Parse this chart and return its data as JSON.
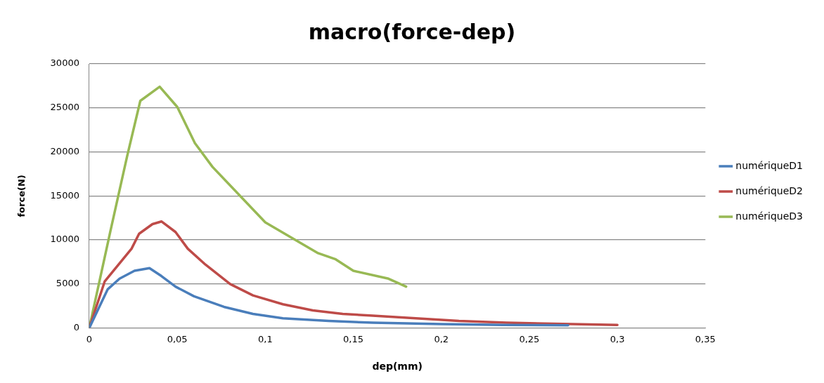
{
  "chart_data": {
    "type": "line",
    "title": "macro(force-dep)",
    "xlabel": "dep(mm)",
    "ylabel": "force(N)",
    "xlim": [
      0,
      0.35
    ],
    "xticks": [
      0,
      {
        "value": 0.05,
        "label": "0,05"
      },
      {
        "value": 0.1,
        "label": "0,1"
      },
      {
        "value": 0.15,
        "label": "0,15"
      },
      {
        "value": 0.2,
        "label": "0,2"
      },
      {
        "value": 0.25,
        "label": "0,25"
      },
      {
        "value": 0.3,
        "label": "0,3"
      },
      {
        "value": 0.35,
        "label": "0,35"
      }
    ],
    "ylim": [
      0,
      30000
    ],
    "yticks": [
      0,
      5000,
      10000,
      15000,
      20000,
      25000,
      30000
    ],
    "grid": "y",
    "legend": "right",
    "marker": "none",
    "line_style": "solid",
    "series": [
      {
        "name": "numériqueD1",
        "color": "#4a7ebb",
        "x": [
          0,
          0.0105,
          0.0172,
          0.0257,
          0.0342,
          0.041,
          0.049,
          0.0595,
          0.0765,
          0.093,
          0.11,
          0.136,
          0.161,
          0.2,
          0.235,
          0.272
        ],
        "values": [
          0,
          4400,
          5600,
          6500,
          6800,
          5900,
          4700,
          3600,
          2400,
          1600,
          1100,
          800,
          600,
          450,
          350,
          300
        ]
      },
      {
        "name": "numériqueD2",
        "color": "#be4b48",
        "x": [
          0,
          0.0088,
          0.024,
          0.0283,
          0.0359,
          0.041,
          0.049,
          0.056,
          0.066,
          0.08,
          0.093,
          0.11,
          0.127,
          0.144,
          0.161,
          0.21,
          0.237,
          0.3
        ],
        "values": [
          0,
          5300,
          9000,
          10700,
          11800,
          12100,
          10900,
          9000,
          7200,
          5000,
          3700,
          2700,
          2000,
          1600,
          1400,
          800,
          600,
          350
        ]
      },
      {
        "name": "numériqueD3",
        "color": "#98b954",
        "x": [
          0,
          0.012,
          0.0215,
          0.029,
          0.04,
          0.05,
          0.06,
          0.07,
          0.1,
          0.13,
          0.14,
          0.15,
          0.17,
          0.18
        ],
        "values": [
          0,
          11000,
          19500,
          25800,
          27400,
          25100,
          21000,
          18300,
          12000,
          8500,
          7800,
          6500,
          5600,
          4700
        ]
      }
    ]
  }
}
